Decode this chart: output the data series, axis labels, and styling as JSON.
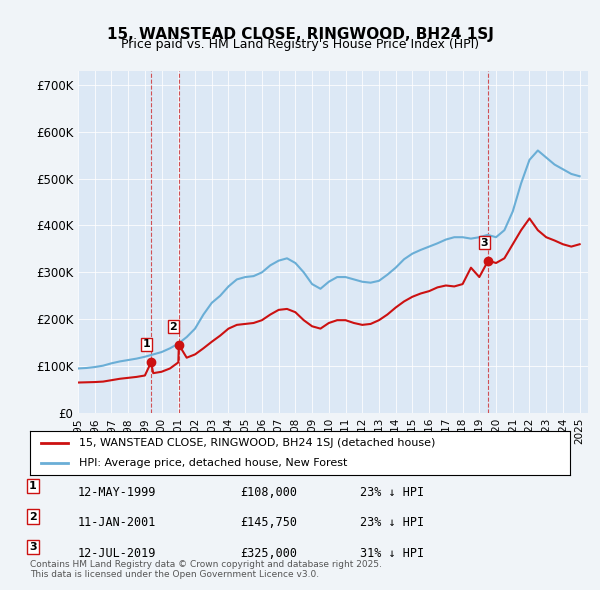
{
  "title": "15, WANSTEAD CLOSE, RINGWOOD, BH24 1SJ",
  "subtitle": "Price paid vs. HM Land Registry's House Price Index (HPI)",
  "background_color": "#f0f4f8",
  "plot_bg_color": "#dce8f5",
  "ylabel_ticks": [
    "£0",
    "£100K",
    "£200K",
    "£300K",
    "£400K",
    "£500K",
    "£600K",
    "£700K"
  ],
  "ytick_values": [
    0,
    100000,
    200000,
    300000,
    400000,
    500000,
    600000,
    700000
  ],
  "ylim": [
    0,
    730000
  ],
  "xlim_start": 1995.0,
  "xlim_end": 2025.5,
  "hpi_line_color": "#6aaed6",
  "price_line_color": "#cc1111",
  "legend1_label": "15, WANSTEAD CLOSE, RINGWOOD, BH24 1SJ (detached house)",
  "legend2_label": "HPI: Average price, detached house, New Forest",
  "transactions": [
    {
      "num": 1,
      "date": "12-MAY-1999",
      "price": "£108,000",
      "hpi": "23% ↓ HPI",
      "year": 1999.37,
      "value": 108000,
      "x_label": 1999.1
    },
    {
      "num": 2,
      "date": "11-JAN-2001",
      "price": "£145,750",
      "hpi": "23% ↓ HPI",
      "year": 2001.03,
      "value": 145750,
      "x_label": 2000.7
    },
    {
      "num": 3,
      "date": "12-JUL-2019",
      "price": "£325,000",
      "hpi": "31% ↓ HPI",
      "year": 2019.53,
      "value": 325000,
      "x_label": 2019.3
    }
  ],
  "footer_text": "Contains HM Land Registry data © Crown copyright and database right 2025.\nThis data is licensed under the Open Government Licence v3.0.",
  "hpi_data_x": [
    1995.0,
    1995.5,
    1996.0,
    1996.5,
    1997.0,
    1997.5,
    1998.0,
    1998.5,
    1999.0,
    1999.5,
    2000.0,
    2000.5,
    2001.0,
    2001.5,
    2002.0,
    2002.5,
    2003.0,
    2003.5,
    2004.0,
    2004.5,
    2005.0,
    2005.5,
    2006.0,
    2006.5,
    2007.0,
    2007.5,
    2008.0,
    2008.5,
    2009.0,
    2009.5,
    2010.0,
    2010.5,
    2011.0,
    2011.5,
    2012.0,
    2012.5,
    2013.0,
    2013.5,
    2014.0,
    2014.5,
    2015.0,
    2015.5,
    2016.0,
    2016.5,
    2017.0,
    2017.5,
    2018.0,
    2018.5,
    2019.0,
    2019.5,
    2020.0,
    2020.5,
    2021.0,
    2021.5,
    2022.0,
    2022.5,
    2023.0,
    2023.5,
    2024.0,
    2024.5,
    2025.0
  ],
  "hpi_data_y": [
    95000,
    96000,
    98000,
    101000,
    106000,
    110000,
    113000,
    116000,
    120000,
    125000,
    130000,
    138000,
    148000,
    162000,
    180000,
    210000,
    235000,
    250000,
    270000,
    285000,
    290000,
    292000,
    300000,
    315000,
    325000,
    330000,
    320000,
    300000,
    275000,
    265000,
    280000,
    290000,
    290000,
    285000,
    280000,
    278000,
    282000,
    295000,
    310000,
    328000,
    340000,
    348000,
    355000,
    362000,
    370000,
    375000,
    375000,
    372000,
    375000,
    380000,
    375000,
    390000,
    430000,
    490000,
    540000,
    560000,
    545000,
    530000,
    520000,
    510000,
    505000
  ],
  "price_data_x": [
    1995.0,
    1995.5,
    1996.0,
    1996.5,
    1997.0,
    1997.5,
    1998.0,
    1998.5,
    1999.0,
    1999.37,
    1999.5,
    2000.0,
    2000.5,
    2001.0,
    2001.03,
    2001.5,
    2002.0,
    2002.5,
    2003.0,
    2003.5,
    2004.0,
    2004.5,
    2005.0,
    2005.5,
    2006.0,
    2006.5,
    2007.0,
    2007.5,
    2008.0,
    2008.5,
    2009.0,
    2009.5,
    2010.0,
    2010.5,
    2011.0,
    2011.5,
    2012.0,
    2012.5,
    2013.0,
    2013.5,
    2014.0,
    2014.5,
    2015.0,
    2015.5,
    2016.0,
    2016.5,
    2017.0,
    2017.5,
    2018.0,
    2018.5,
    2019.0,
    2019.53,
    2020.0,
    2020.5,
    2021.0,
    2021.5,
    2022.0,
    2022.5,
    2023.0,
    2023.5,
    2024.0,
    2024.5,
    2025.0
  ],
  "price_data_y": [
    65000,
    65500,
    66000,
    67000,
    70000,
    73000,
    75000,
    77000,
    80000,
    108000,
    85000,
    88000,
    95000,
    108000,
    145750,
    118000,
    125000,
    138000,
    152000,
    165000,
    180000,
    188000,
    190000,
    192000,
    198000,
    210000,
    220000,
    222000,
    215000,
    198000,
    185000,
    180000,
    192000,
    198000,
    198000,
    192000,
    188000,
    190000,
    198000,
    210000,
    225000,
    238000,
    248000,
    255000,
    260000,
    268000,
    272000,
    270000,
    275000,
    310000,
    290000,
    325000,
    320000,
    330000,
    360000,
    390000,
    415000,
    390000,
    375000,
    368000,
    360000,
    355000,
    360000
  ]
}
